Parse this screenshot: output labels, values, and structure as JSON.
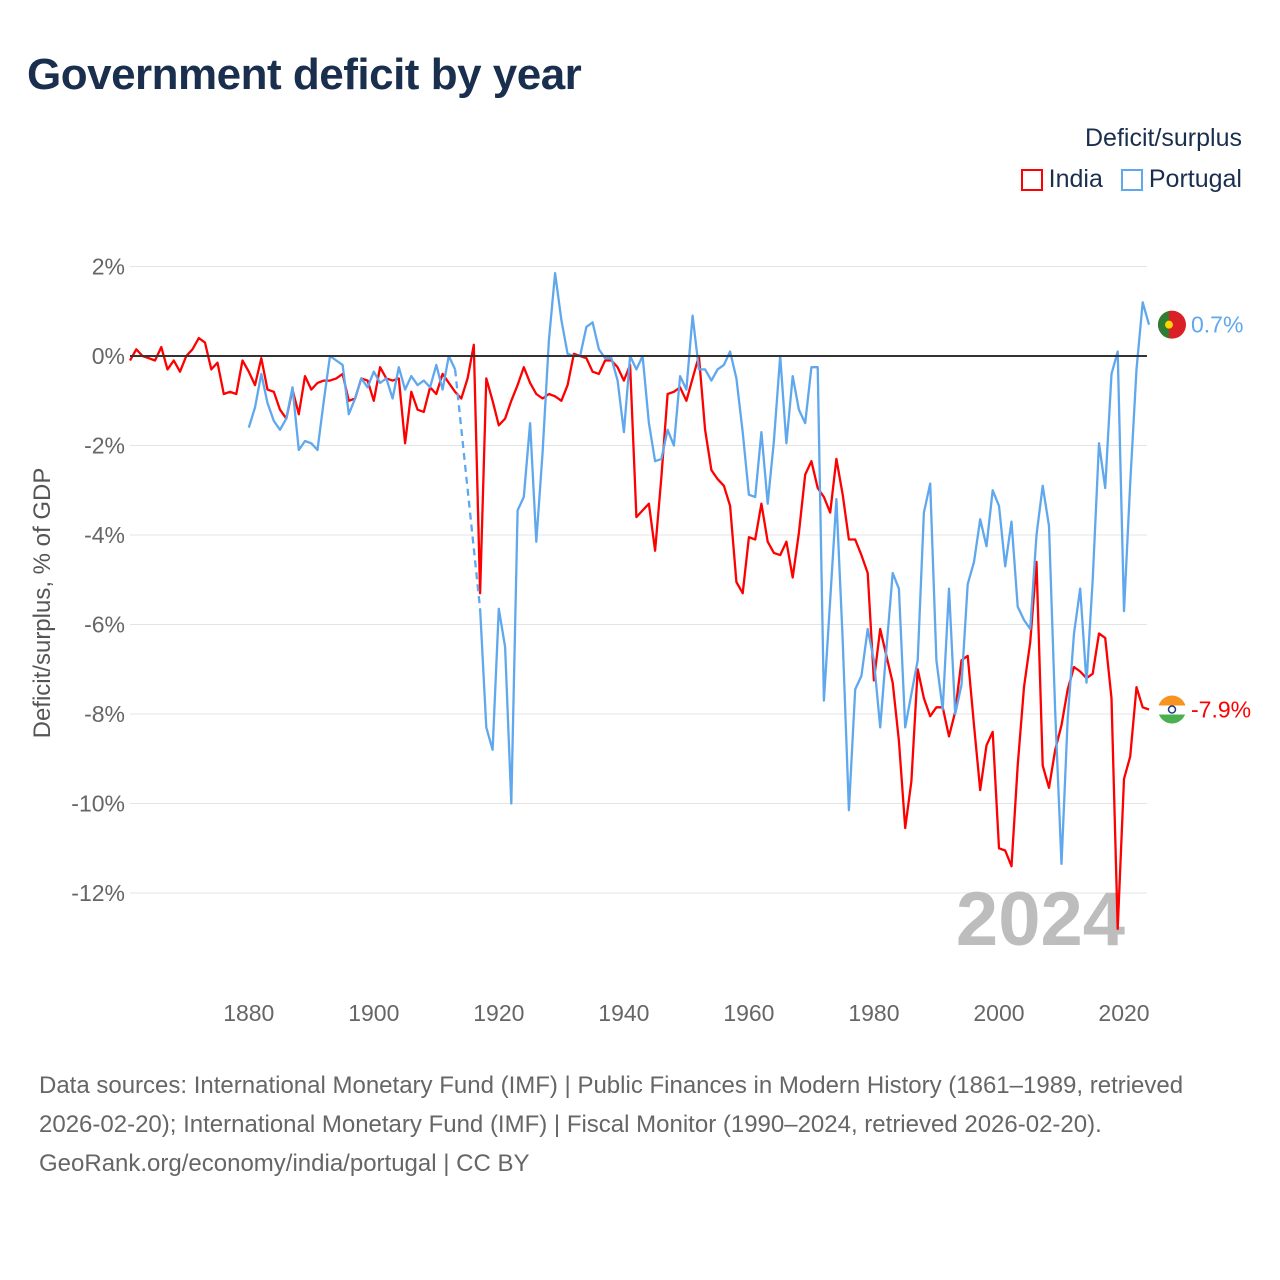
{
  "chart_data": {
    "type": "line",
    "title": "Government deficit by year",
    "ylabel": "Deficit/surplus, % of GDP",
    "xlabel": "",
    "ylim": [
      -13.5,
      2.5
    ],
    "xlim": [
      1861,
      2024
    ],
    "yticks": [
      2,
      0,
      -2,
      -4,
      -6,
      -8,
      -10,
      -12
    ],
    "ytick_labels": [
      "2%",
      "0%",
      "-2%",
      "-4%",
      "-6%",
      "-8%",
      "-10%",
      "-12%"
    ],
    "xticks": [
      1880,
      1900,
      1920,
      1940,
      1960,
      1980,
      2000,
      2020
    ],
    "xtick_labels": [
      "1880",
      "1900",
      "1920",
      "1940",
      "1960",
      "1980",
      "2000",
      "2020"
    ],
    "grid": true,
    "legend_title": "Deficit/surplus",
    "legend_position": "top-right",
    "current_year_label": "2024",
    "series": [
      {
        "name": "India",
        "color": "#ff0000",
        "start_year": 1861,
        "end_label": "-7.9%",
        "values": [
          -0.1,
          0.15,
          0,
          -0.05,
          -0.1,
          0.2,
          -0.3,
          -0.1,
          -0.35,
          0,
          0.15,
          0.4,
          0.3,
          -0.3,
          -0.15,
          -0.85,
          -0.8,
          -0.85,
          -0.1,
          -0.35,
          -0.65,
          -0.05,
          -0.75,
          -0.8,
          -1.2,
          -1.4,
          -0.75,
          -1.3,
          -0.45,
          -0.75,
          -0.6,
          -0.55,
          -0.55,
          -0.5,
          -0.4,
          -1.0,
          -0.95,
          -0.5,
          -0.55,
          -1.0,
          -0.25,
          -0.5,
          -0.55,
          -0.5,
          -1.95,
          -0.8,
          -1.2,
          -1.25,
          -0.7,
          -0.85,
          -0.4,
          -0.6,
          -0.8,
          -0.95,
          -0.5,
          0.25,
          -5.3,
          -0.5,
          -1.0,
          -1.55,
          -1.4,
          -1.0,
          -0.65,
          -0.25,
          -0.6,
          -0.85,
          -0.95,
          -0.85,
          -0.9,
          -1.0,
          -0.65,
          0.05,
          0,
          -0.05,
          -0.35,
          -0.4,
          -0.1,
          -0.1,
          -0.25,
          -0.55,
          -0.2,
          -3.6,
          -3.45,
          -3.3,
          -4.35,
          -2.7,
          -0.85,
          -0.8,
          -0.7,
          -1.0,
          -0.5,
          0,
          -1.65,
          -2.55,
          -2.75,
          -2.9,
          -3.35,
          -5.05,
          -5.3,
          -4.05,
          -4.1,
          -3.3,
          -4.15,
          -4.4,
          -4.45,
          -4.15,
          -4.95,
          -3.95,
          -2.65,
          -2.35,
          -2.95,
          -3.15,
          -3.5,
          -2.3,
          -3.1,
          -4.1,
          -4.1,
          -4.45,
          -4.85,
          -7.25,
          -6.1,
          -6.7,
          -7.3,
          -8.6,
          -10.55,
          -9.5,
          -7.0,
          -7.65,
          -8.05,
          -7.85,
          -7.85,
          -8.5,
          -7.95,
          -6.8,
          -6.7,
          -8.25,
          -9.7,
          -8.7,
          -8.4,
          -11.0,
          -11.05,
          -11.4,
          -9.15,
          -7.4,
          -6.4,
          -4.6,
          -9.15,
          -9.65,
          -8.8,
          -8.25,
          -7.45,
          -6.95,
          -7.05,
          -7.2,
          -7.1,
          -6.2,
          -6.3,
          -7.65,
          -12.8,
          -9.45,
          -8.95,
          -7.4,
          -7.85,
          -7.9
        ]
      },
      {
        "name": "Portugal",
        "color": "#5fa8ee",
        "start_year": 1880,
        "end_label": "0.7%",
        "values": [
          -1.6,
          -1.15,
          -0.4,
          -1.05,
          -1.45,
          -1.65,
          -1.4,
          -0.7,
          -2.1,
          -1.9,
          -1.95,
          -2.1,
          -1.0,
          0,
          -0.1,
          -0.2,
          -1.3,
          -0.95,
          -0.5,
          -0.7,
          -0.35,
          -0.6,
          -0.5,
          -0.95,
          -0.25,
          -0.75,
          -0.45,
          -0.65,
          -0.55,
          -0.7,
          -0.2,
          -0.75,
          0,
          -0.3,
          null,
          null,
          null,
          -5.65,
          -8.3,
          -8.8,
          -5.65,
          -6.5,
          -10.0,
          -3.45,
          -3.15,
          -1.5,
          -4.15,
          -2.15,
          0.35,
          1.85,
          0.8,
          0.05,
          0,
          0,
          0.65,
          0.75,
          0.15,
          -0.05,
          -0.05,
          -0.55,
          -1.7,
          0,
          -0.3,
          0,
          -1.5,
          -2.35,
          -2.3,
          -1.65,
          -2.0,
          -0.45,
          -0.75,
          0.9,
          -0.3,
          -0.3,
          -0.55,
          -0.3,
          -0.2,
          0.1,
          -0.5,
          -1.7,
          -3.1,
          -3.15,
          -1.7,
          -3.3,
          -1.9,
          0,
          -1.95,
          -0.45,
          -1.2,
          -1.5,
          -0.25,
          -0.25,
          -7.7,
          -5.45,
          -3.2,
          -6.35,
          -10.15,
          -7.45,
          -7.15,
          -6.1,
          -6.8,
          -8.3,
          -6.55,
          -4.85,
          -5.2,
          -8.3,
          -7.55,
          -6.8,
          -3.5,
          -2.85,
          -6.8,
          -7.9,
          -5.2,
          -8.0,
          -7.35,
          -5.1,
          -4.6,
          -3.65,
          -4.25,
          -3.0,
          -3.35,
          -4.7,
          -3.7,
          -5.6,
          -5.9,
          -6.1,
          -4.0,
          -2.9,
          -3.8,
          -7.95,
          -11.35,
          -8.1,
          -6.2,
          -5.2,
          -7.3,
          -5.0,
          -1.95,
          -2.95,
          -0.4,
          0.1,
          -5.7,
          -2.85,
          -0.3,
          1.2,
          0.7
        ]
      }
    ]
  },
  "header": {
    "title": "Government deficit by year"
  },
  "legend": {
    "title": "Deficit/surplus",
    "items": [
      "India",
      "Portugal"
    ]
  },
  "footer": {
    "sources": "Data sources: International Monetary Fund (IMF) | Public Finances in Modern History (1861–1989, retrieved 2026-02-20); International Monetary Fund (IMF) | Fiscal Monitor (1990–2024, retrieved 2026-02-20).",
    "link": "GeoRank.org/economy/india/portugal",
    "license": " | CC BY"
  }
}
